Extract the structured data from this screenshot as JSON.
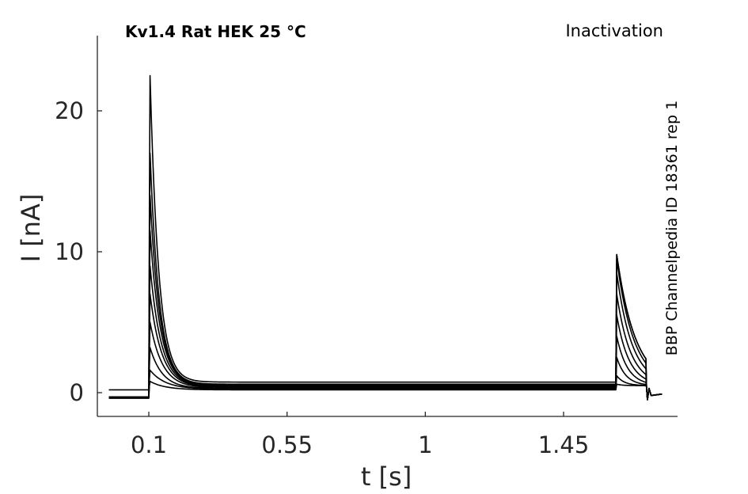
{
  "chart_data": {
    "type": "line",
    "title": "Kv1.4  Rat  HEK  25 °C",
    "protocol_label": "Inactivation",
    "source_label": "BBP Channelpedia ID 18361 rep 1",
    "xlabel": "t [s]",
    "ylabel": "I [nA]",
    "xlim": [
      -0.06,
      1.83
    ],
    "ylim": [
      -1.6,
      25.5
    ],
    "xticks": [
      0.1,
      0.55,
      1,
      1.45
    ],
    "xtick_labels": [
      "0.1",
      "0.55",
      "1",
      "1.45"
    ],
    "yticks": [
      0,
      10,
      20
    ],
    "ytick_labels": [
      "0",
      "10",
      "20"
    ],
    "grid": false,
    "line_color": "#000000",
    "series": [
      {
        "baseline": -0.4,
        "peak": 0.8,
        "tau": 0.05,
        "steady": 0.2,
        "tail_peak": 0.6,
        "tail_tau": 0.02
      },
      {
        "baseline": -0.35,
        "peak": 1.6,
        "tau": 0.05,
        "steady": 0.25,
        "tail_peak": 1.2,
        "tail_tau": 0.025
      },
      {
        "baseline": -0.3,
        "peak": 3.2,
        "tau": 0.04,
        "steady": 0.3,
        "tail_peak": 2.5,
        "tail_tau": 0.03
      },
      {
        "baseline": -0.3,
        "peak": 5.0,
        "tau": 0.04,
        "steady": 0.35,
        "tail_peak": 4.0,
        "tail_tau": 0.035
      },
      {
        "baseline": -0.3,
        "peak": 7.0,
        "tau": 0.038,
        "steady": 0.4,
        "tail_peak": 5.5,
        "tail_tau": 0.04
      },
      {
        "baseline": -0.3,
        "peak": 9.0,
        "tau": 0.036,
        "steady": 0.45,
        "tail_peak": 7.0,
        "tail_tau": 0.045
      },
      {
        "baseline": -0.3,
        "peak": 11.5,
        "tau": 0.034,
        "steady": 0.5,
        "tail_peak": 8.5,
        "tail_tau": 0.05
      },
      {
        "baseline": -0.3,
        "peak": 14.0,
        "tau": 0.032,
        "steady": 0.55,
        "tail_peak": 9.5,
        "tail_tau": 0.055
      },
      {
        "baseline": -0.3,
        "peak": 17.0,
        "tau": 0.03,
        "steady": 0.6,
        "tail_peak": 9.8,
        "tail_tau": 0.06
      },
      {
        "baseline": 0.2,
        "peak": 22.5,
        "tau": 0.028,
        "steady": 0.75,
        "tail_peak": 9.8,
        "tail_tau": 0.06
      }
    ]
  }
}
